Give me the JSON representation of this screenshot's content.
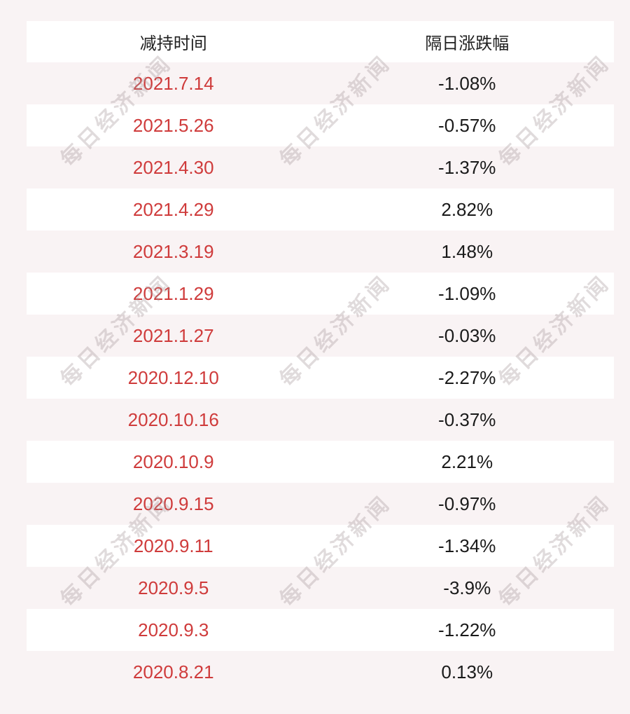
{
  "page": {
    "background": "#f9f3f4"
  },
  "watermark": {
    "text": "每日经济新闻",
    "color": "rgba(167, 152, 155, 0.35)"
  },
  "table": {
    "header": {
      "date_label": "减持时间",
      "change_label": "隔日涨跌幅"
    },
    "date_color": "#cf3b3b",
    "change_color": "#1a1a1a",
    "rows": [
      {
        "date": "2021.7.14",
        "change": "-1.08%"
      },
      {
        "date": "2021.5.26",
        "change": "-0.57%"
      },
      {
        "date": "2021.4.30",
        "change": "-1.37%"
      },
      {
        "date": "2021.4.29",
        "change": "2.82%"
      },
      {
        "date": "2021.3.19",
        "change": "1.48%"
      },
      {
        "date": "2021.1.29",
        "change": "-1.09%"
      },
      {
        "date": "2021.1.27",
        "change": "-0.03%"
      },
      {
        "date": "2020.12.10",
        "change": "-2.27%"
      },
      {
        "date": "2020.10.16",
        "change": "-0.37%"
      },
      {
        "date": "2020.10.9",
        "change": "2.21%"
      },
      {
        "date": "2020.9.15",
        "change": "-0.97%"
      },
      {
        "date": "2020.9.11",
        "change": "-1.34%"
      },
      {
        "date": "2020.9.5",
        "change": "-3.9%"
      },
      {
        "date": "2020.9.3",
        "change": "-1.22%"
      },
      {
        "date": "2020.8.21",
        "change": "0.13%"
      }
    ]
  },
  "chart_data": {
    "type": "table",
    "columns": [
      "减持时间",
      "隔日涨跌幅"
    ],
    "rows": [
      [
        "2021.7.14",
        "-1.08%"
      ],
      [
        "2021.5.26",
        "-0.57%"
      ],
      [
        "2021.4.30",
        "-1.37%"
      ],
      [
        "2021.4.29",
        "2.82%"
      ],
      [
        "2021.3.19",
        "1.48%"
      ],
      [
        "2021.1.29",
        "-1.09%"
      ],
      [
        "2021.1.27",
        "-0.03%"
      ],
      [
        "2020.12.10",
        "-2.27%"
      ],
      [
        "2020.10.16",
        "-0.37%"
      ],
      [
        "2020.10.9",
        "2.21%"
      ],
      [
        "2020.9.15",
        "-0.97%"
      ],
      [
        "2020.9.11",
        "-1.34%"
      ],
      [
        "2020.9.5",
        "-3.9%"
      ],
      [
        "2020.9.3",
        "-1.22%"
      ],
      [
        "2020.8.21",
        "0.13%"
      ]
    ],
    "change_values_pct": [
      -1.08,
      -0.57,
      -1.37,
      2.82,
      1.48,
      -1.09,
      -0.03,
      -2.27,
      -0.37,
      2.21,
      -0.97,
      -1.34,
      -3.9,
      -1.22,
      0.13
    ],
    "layout": {
      "row_striping": "alternate white / pink",
      "text_align": "center",
      "grid": "off"
    }
  }
}
